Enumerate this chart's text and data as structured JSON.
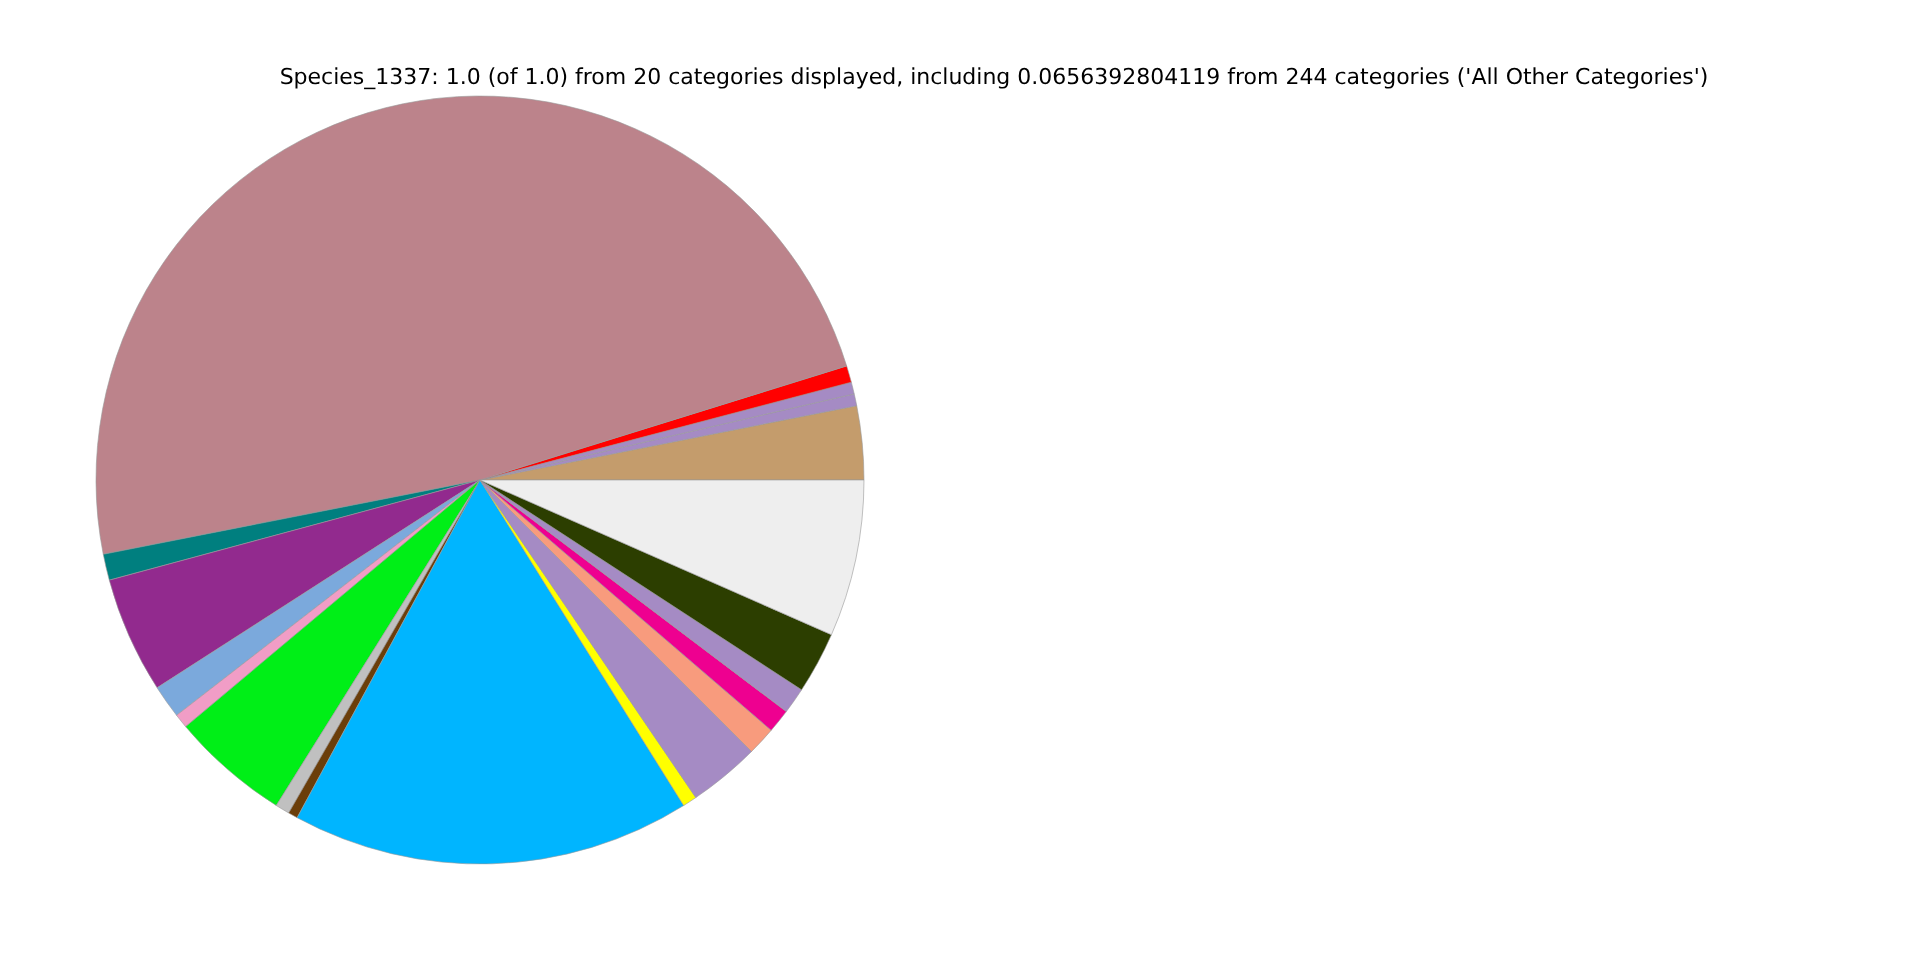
{
  "chart_data": {
    "type": "pie",
    "title": "Species_1337: 1.0 (of 1.0) from 20 categories displayed, including 0.0656392804119 from 244 categories ('All Other Categories')",
    "categories": [
      null,
      null,
      null,
      null,
      null,
      null,
      null,
      null,
      null,
      null,
      null,
      null,
      null,
      null,
      null,
      null,
      null,
      null,
      null,
      null
    ],
    "values": [
      3.1,
      0.5,
      0.5,
      0.7,
      48.3,
      1.1,
      4.9,
      1.4,
      0.6,
      5.0,
      0.6,
      0.4,
      16.8,
      0.6,
      3.0,
      1.2,
      1.0,
      1.1,
      2.6,
      6.6
    ],
    "colors": [
      "#c49c6c",
      "#a58bc4",
      "#a58bc4",
      "#ff0000",
      "#bc838b",
      "#007f7f",
      "#922a8e",
      "#7ba9dc",
      "#f19dc6",
      "#00ef17",
      "#c0c0c0",
      "#6b3e0a",
      "#00b5ff",
      "#ffff00",
      "#a58bc4",
      "#f89b7d",
      "#ee0090",
      "#a58bc4",
      "#2c3e00",
      "#eeeeee"
    ]
  }
}
